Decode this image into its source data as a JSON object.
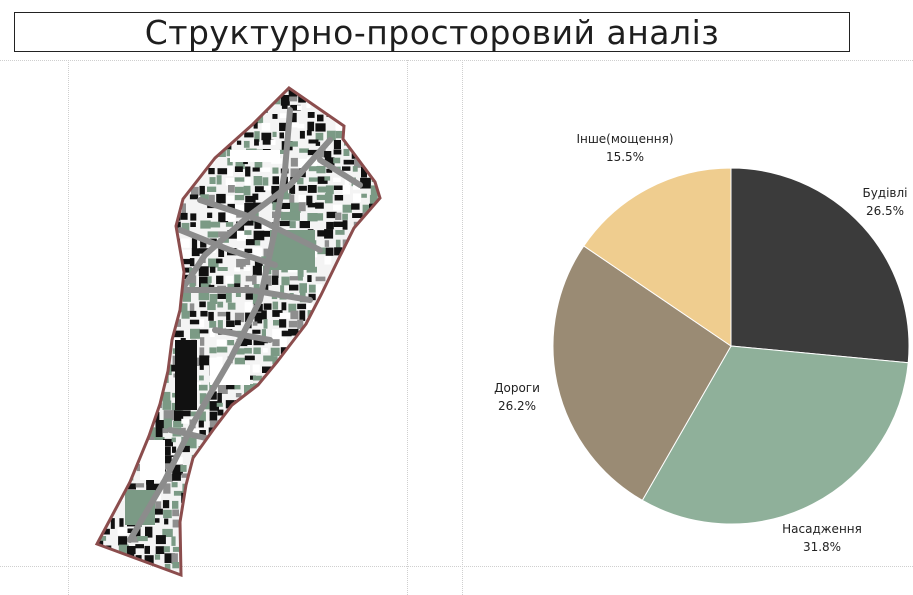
{
  "page": {
    "title": "Структурно-просторовий аналіз"
  },
  "colors": {
    "boundary": "#8b4d4d",
    "buildings": "#3b3b3b",
    "greenery": "#8fb09a",
    "roads": "#9a8b74",
    "other": "#efcd8f",
    "building_block": "#111111",
    "green_block": "#7b9a85",
    "road_block": "#8e8e8e"
  },
  "map": {
    "icon": "district-plan-map"
  },
  "chart_data": {
    "type": "pie",
    "title": "",
    "slices": [
      {
        "label": "Будівлі",
        "value": 26.5,
        "value_label": "26.5%",
        "color": "#3b3b3b"
      },
      {
        "label": "Насадження",
        "value": 31.8,
        "value_label": "31.8%",
        "color": "#8fb09a"
      },
      {
        "label": "Дороги",
        "value": 26.2,
        "value_label": "26.2%",
        "color": "#9a8b74"
      },
      {
        "label": "Інше(мощення)",
        "value": 15.5,
        "value_label": "15.5%",
        "color": "#efcd8f"
      }
    ],
    "start_angle": "12 o'clock",
    "direction": "clockwise",
    "legend": "none"
  }
}
